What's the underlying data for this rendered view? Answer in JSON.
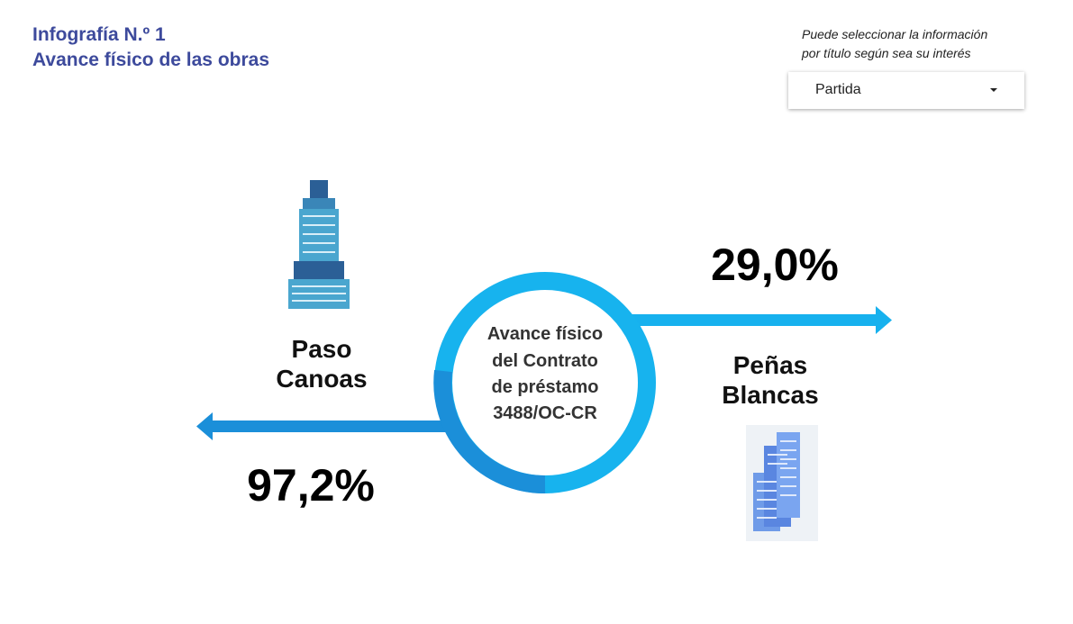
{
  "header": {
    "title": [
      "Infografía N.º 1",
      "Avance físico de las obras"
    ]
  },
  "filter": {
    "hint": [
      "Puede seleccionar la información",
      "por título según sea su interés"
    ],
    "dropdown": "Partida"
  },
  "center": {
    "label": [
      "Avance físico",
      "del Contrato",
      "de préstamo",
      "3488/OC-CR"
    ]
  },
  "sites": [
    {
      "name": [
        "Paso",
        "Canoas"
      ],
      "progress": "97,2%"
    },
    {
      "name": [
        "Peñas",
        "Blancas"
      ],
      "progress": "29,0%"
    }
  ]
}
